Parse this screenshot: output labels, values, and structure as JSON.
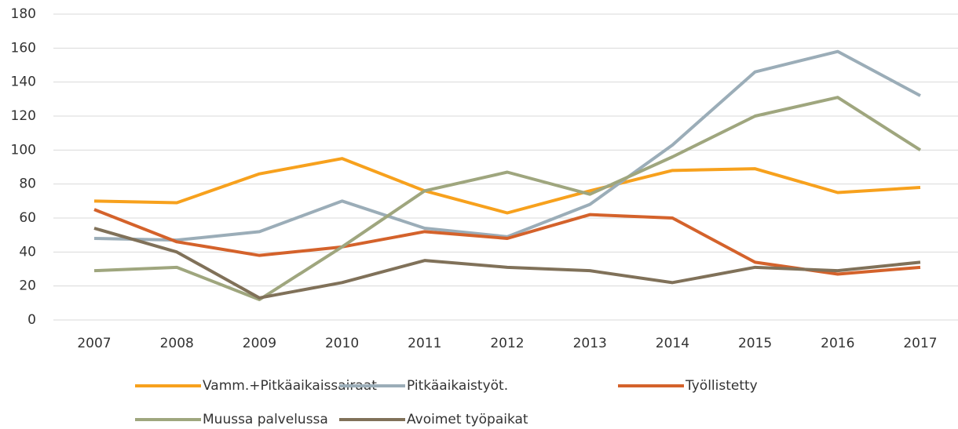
{
  "chart_data": {
    "type": "line",
    "categories": [
      "2007",
      "2008",
      "2009",
      "2010",
      "2011",
      "2012",
      "2013",
      "2014",
      "2015",
      "2016",
      "2017"
    ],
    "series": [
      {
        "name": "Vamm.+Pitkäaikaissairaat",
        "color": "#f7a11d",
        "values": [
          70,
          69,
          86,
          95,
          76,
          63,
          76,
          88,
          89,
          75,
          78
        ]
      },
      {
        "name": "Pitkäaikaistyöt.",
        "color": "#9badb8",
        "values": [
          48,
          47,
          52,
          70,
          54,
          49,
          68,
          103,
          146,
          158,
          132
        ]
      },
      {
        "name": "Työllistetty",
        "color": "#d4622b",
        "values": [
          65,
          46,
          38,
          43,
          52,
          48,
          62,
          60,
          34,
          27,
          31
        ]
      },
      {
        "name": "Muussa palvelussa",
        "color": "#9fa67e",
        "values": [
          29,
          31,
          12,
          43,
          76,
          87,
          74,
          96,
          120,
          131,
          100
        ]
      },
      {
        "name": "Avoimet työpaikat",
        "color": "#807159",
        "values": [
          54,
          40,
          13,
          22,
          35,
          31,
          29,
          22,
          31,
          29,
          34
        ]
      }
    ],
    "ylim": [
      0,
      180
    ],
    "yticks": [
      0,
      20,
      40,
      60,
      80,
      100,
      120,
      140,
      160,
      180
    ],
    "grid": true
  }
}
